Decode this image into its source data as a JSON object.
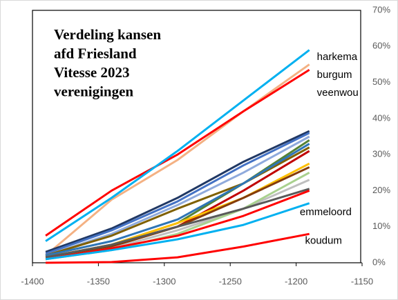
{
  "chart_data": {
    "type": "line",
    "title": [
      "Verdeling kansen",
      "afd Friesland",
      "Vitesse 2023",
      "verenigingen"
    ],
    "x": [
      -1390,
      -1340,
      -1290,
      -1240,
      -1190
    ],
    "xlim": [
      -1400,
      -1150
    ],
    "xticks": [
      -1400,
      -1350,
      -1300,
      -1250,
      -1200,
      -1150
    ],
    "ylim": [
      0,
      70
    ],
    "yticks": [
      {
        "value": 0,
        "label": "0%"
      },
      {
        "value": 10,
        "label": "10%"
      },
      {
        "value": 20,
        "label": "20%"
      },
      {
        "value": 30,
        "label": "30%"
      },
      {
        "value": 40,
        "label": "40%"
      },
      {
        "value": 50,
        "label": "50%"
      },
      {
        "value": 60,
        "label": "60%"
      },
      {
        "value": 70,
        "label": "70%"
      }
    ],
    "y_axis_side": "right",
    "annotations": [
      {
        "text": "harkema",
        "x": -1190,
        "y": 57
      },
      {
        "text": "burgum",
        "x": -1190,
        "y": 52
      },
      {
        "text": "veenwou",
        "x": -1190,
        "y": 47
      },
      {
        "text": "emmeloord",
        "x": -1203,
        "y": 14
      },
      {
        "text": "koudum",
        "x": -1199,
        "y": 6
      }
    ],
    "series": [
      {
        "color": "#f4b183",
        "values": [
          2,
          17.5,
          28.5,
          42,
          55
        ]
      },
      {
        "color": "#203864",
        "values": [
          3,
          9.5,
          18,
          28,
          36.5
        ]
      },
      {
        "color": "#4472c4",
        "values": [
          2.5,
          9,
          17,
          27,
          36
        ]
      },
      {
        "color": "#8faadc",
        "values": [
          2,
          8,
          16,
          25,
          35
        ]
      },
      {
        "color": "#548235",
        "values": [
          1.5,
          5,
          11,
          22,
          34
        ]
      },
      {
        "color": "#7f6000",
        "values": [
          2,
          7.5,
          15,
          22,
          32
        ]
      },
      {
        "color": "#2e75b6",
        "values": [
          2,
          6,
          12,
          22,
          33
        ]
      },
      {
        "color": "#c00000",
        "values": [
          1.5,
          5,
          10,
          20,
          31
        ]
      },
      {
        "color": "#ffc000",
        "values": [
          1.5,
          5,
          11,
          18,
          27.5
        ]
      },
      {
        "color": "#843c0c",
        "values": [
          1.5,
          4.5,
          10,
          18,
          26.5
        ]
      },
      {
        "color": "#bfbfbf",
        "values": [
          1,
          4,
          9,
          15,
          23
        ]
      },
      {
        "color": "#a9d18e",
        "values": [
          1,
          3.5,
          8,
          15,
          25
        ]
      },
      {
        "color": "#595959",
        "values": [
          1.5,
          5,
          10,
          15,
          20.5
        ]
      },
      {
        "color": "#ff0000",
        "values": [
          1,
          4,
          7.5,
          13,
          20
        ]
      },
      {
        "color": "#00b0f0",
        "values": [
          1,
          3.5,
          6.5,
          10.5,
          16.5
        ]
      },
      {
        "color": "#ff0000",
        "values": [
          0,
          0.2,
          1.5,
          4.5,
          8
        ]
      },
      {
        "color": "#ff0000",
        "values": [
          7.5,
          20,
          30,
          42,
          53.5
        ]
      },
      {
        "color": "#00b0f0",
        "values": [
          6,
          18,
          31,
          45,
          59
        ]
      }
    ]
  }
}
